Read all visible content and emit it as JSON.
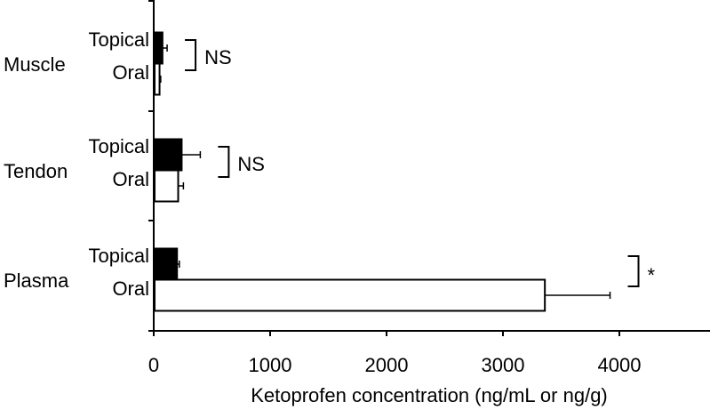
{
  "chart_data": {
    "type": "bar",
    "orientation": "horizontal",
    "xlabel": "Ketoprofen concentration (ng/mL or ng/g)",
    "xlim": [
      0,
      4000
    ],
    "xticks": [
      "0",
      "1000",
      "2000",
      "3000",
      "4000"
    ],
    "xtick_values": [
      0,
      1000,
      2000,
      3000,
      4000
    ],
    "grid": false,
    "groups": [
      {
        "name": "Muscle",
        "bars": [
          {
            "label": "Topical",
            "value": 75,
            "error": 40,
            "fill": "#000000"
          },
          {
            "label": "Oral",
            "value": 50,
            "error": 10,
            "fill": "#ffffff"
          }
        ],
        "significance": "NS"
      },
      {
        "name": "Tendon",
        "bars": [
          {
            "label": "Topical",
            "value": 240,
            "error": 160,
            "fill": "#000000"
          },
          {
            "label": "Oral",
            "value": 210,
            "error": 45,
            "fill": "#ffffff"
          }
        ],
        "significance": "NS"
      },
      {
        "name": "Plasma",
        "bars": [
          {
            "label": "Topical",
            "value": 200,
            "error": 20,
            "fill": "#000000"
          },
          {
            "label": "Oral",
            "value": 3360,
            "error": 560,
            "fill": "#ffffff"
          }
        ],
        "significance": "*"
      }
    ]
  }
}
